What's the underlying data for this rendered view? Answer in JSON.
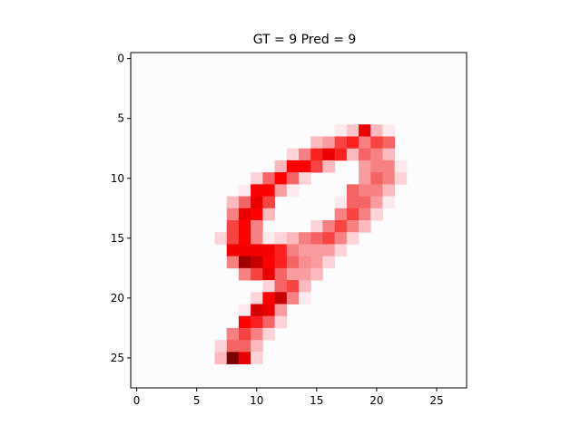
{
  "chart_data": {
    "type": "heatmap",
    "title": "GT = 9 Pred = 9",
    "colormap": "Reds",
    "background_color": "#fcfbfd",
    "grid_size": [
      28,
      28
    ],
    "xlim": [
      -0.5,
      27.5
    ],
    "ylim": [
      27.5,
      -0.5
    ],
    "x_ticks": [
      0,
      5,
      10,
      15,
      20,
      25
    ],
    "y_ticks": [
      0,
      5,
      10,
      15,
      20,
      25
    ],
    "x_tick_labels": [
      "0",
      "5",
      "10",
      "15",
      "20",
      "25"
    ],
    "y_tick_labels": [
      "0",
      "5",
      "10",
      "15",
      "20",
      "25"
    ],
    "cells": [
      [
        6,
        17,
        0.1
      ],
      [
        6,
        18,
        0.25
      ],
      [
        6,
        19,
        1.0
      ],
      [
        6,
        20,
        0.3
      ],
      [
        6,
        21,
        0.1
      ],
      [
        7,
        15,
        0.3
      ],
      [
        7,
        16,
        0.4
      ],
      [
        7,
        17,
        0.7
      ],
      [
        7,
        18,
        0.8
      ],
      [
        7,
        19,
        0.5
      ],
      [
        7,
        20,
        0.7
      ],
      [
        7,
        21,
        0.6
      ],
      [
        8,
        13,
        0.2
      ],
      [
        8,
        14,
        0.5
      ],
      [
        8,
        15,
        0.8
      ],
      [
        8,
        16,
        1.0
      ],
      [
        8,
        17,
        0.8
      ],
      [
        8,
        18,
        0.3
      ],
      [
        8,
        19,
        0.6
      ],
      [
        8,
        20,
        0.5
      ],
      [
        8,
        21,
        0.3
      ],
      [
        9,
        12,
        0.3
      ],
      [
        9,
        13,
        0.9
      ],
      [
        9,
        14,
        0.9
      ],
      [
        9,
        15,
        0.7
      ],
      [
        9,
        16,
        0.3
      ],
      [
        9,
        19,
        0.4
      ],
      [
        9,
        20,
        0.5
      ],
      [
        9,
        21,
        0.5
      ],
      [
        9,
        22,
        0.1
      ],
      [
        10,
        10,
        0.2
      ],
      [
        10,
        11,
        0.6
      ],
      [
        10,
        12,
        0.9
      ],
      [
        10,
        13,
        0.6
      ],
      [
        10,
        14,
        0.2
      ],
      [
        10,
        19,
        0.4
      ],
      [
        10,
        20,
        0.6
      ],
      [
        10,
        21,
        0.5
      ],
      [
        10,
        22,
        0.2
      ],
      [
        11,
        9,
        0.1
      ],
      [
        11,
        10,
        0.9
      ],
      [
        11,
        11,
        0.9
      ],
      [
        11,
        12,
        0.4
      ],
      [
        11,
        13,
        0.1
      ],
      [
        11,
        18,
        0.6
      ],
      [
        11,
        19,
        0.5
      ],
      [
        11,
        20,
        0.5
      ],
      [
        11,
        21,
        0.3
      ],
      [
        12,
        8,
        0.3
      ],
      [
        12,
        9,
        0.6
      ],
      [
        12,
        10,
        1.0
      ],
      [
        12,
        11,
        0.7
      ],
      [
        12,
        17,
        0.1
      ],
      [
        12,
        18,
        0.6
      ],
      [
        12,
        19,
        0.6
      ],
      [
        12,
        20,
        0.4
      ],
      [
        12,
        21,
        0.1
      ],
      [
        13,
        8,
        0.5
      ],
      [
        13,
        9,
        1.0
      ],
      [
        13,
        10,
        0.9
      ],
      [
        13,
        11,
        0.3
      ],
      [
        13,
        17,
        0.5
      ],
      [
        13,
        18,
        0.7
      ],
      [
        13,
        19,
        0.5
      ],
      [
        13,
        20,
        0.2
      ],
      [
        14,
        8,
        0.7
      ],
      [
        14,
        9,
        0.9
      ],
      [
        14,
        10,
        0.5
      ],
      [
        14,
        15,
        0.2
      ],
      [
        14,
        16,
        0.5
      ],
      [
        14,
        17,
        0.7
      ],
      [
        14,
        18,
        0.5
      ],
      [
        14,
        19,
        0.3
      ],
      [
        15,
        7,
        0.2
      ],
      [
        15,
        8,
        0.7
      ],
      [
        15,
        9,
        0.9
      ],
      [
        15,
        10,
        0.5
      ],
      [
        15,
        11,
        0.1
      ],
      [
        15,
        12,
        0.2
      ],
      [
        15,
        13,
        0.3
      ],
      [
        15,
        14,
        0.5
      ],
      [
        15,
        15,
        0.6
      ],
      [
        15,
        16,
        0.7
      ],
      [
        15,
        17,
        0.5
      ],
      [
        15,
        18,
        0.2
      ],
      [
        16,
        8,
        0.95
      ],
      [
        16,
        9,
        0.95
      ],
      [
        16,
        10,
        0.95
      ],
      [
        16,
        11,
        0.95
      ],
      [
        16,
        12,
        0.8
      ],
      [
        16,
        13,
        0.5
      ],
      [
        16,
        14,
        0.4
      ],
      [
        16,
        15,
        0.4
      ],
      [
        16,
        16,
        0.4
      ],
      [
        16,
        17,
        0.2
      ],
      [
        17,
        8,
        0.5
      ],
      [
        17,
        9,
        1.25
      ],
      [
        17,
        10,
        1.15
      ],
      [
        17,
        11,
        0.9
      ],
      [
        17,
        12,
        0.8
      ],
      [
        17,
        13,
        0.6
      ],
      [
        17,
        14,
        0.45
      ],
      [
        17,
        15,
        0.4
      ],
      [
        17,
        16,
        0.2
      ],
      [
        18,
        9,
        0.5
      ],
      [
        18,
        10,
        0.7
      ],
      [
        18,
        11,
        1.0
      ],
      [
        18,
        12,
        0.6
      ],
      [
        18,
        13,
        0.4
      ],
      [
        18,
        14,
        0.4
      ],
      [
        18,
        15,
        0.3
      ],
      [
        19,
        11,
        0.2
      ],
      [
        19,
        12,
        0.6
      ],
      [
        19,
        13,
        0.7
      ],
      [
        19,
        14,
        0.3
      ],
      [
        20,
        10,
        0.2
      ],
      [
        20,
        11,
        0.9
      ],
      [
        20,
        12,
        1.15
      ],
      [
        20,
        13,
        0.5
      ],
      [
        20,
        14,
        0.1
      ],
      [
        21,
        9,
        0.1
      ],
      [
        21,
        10,
        1.1
      ],
      [
        21,
        11,
        1.0
      ],
      [
        21,
        12,
        0.4
      ],
      [
        22,
        9,
        0.9
      ],
      [
        22,
        10,
        0.8
      ],
      [
        22,
        11,
        0.6
      ],
      [
        22,
        12,
        0.2
      ],
      [
        23,
        8,
        0.5
      ],
      [
        23,
        9,
        0.7
      ],
      [
        23,
        10,
        0.5
      ],
      [
        23,
        11,
        0.2
      ],
      [
        24,
        7,
        0.2
      ],
      [
        24,
        8,
        0.6
      ],
      [
        24,
        9,
        0.6
      ],
      [
        24,
        10,
        0.3
      ],
      [
        25,
        7,
        0.3
      ],
      [
        25,
        8,
        1.4
      ],
      [
        25,
        9,
        1.0
      ],
      [
        25,
        10,
        0.2
      ]
    ]
  }
}
